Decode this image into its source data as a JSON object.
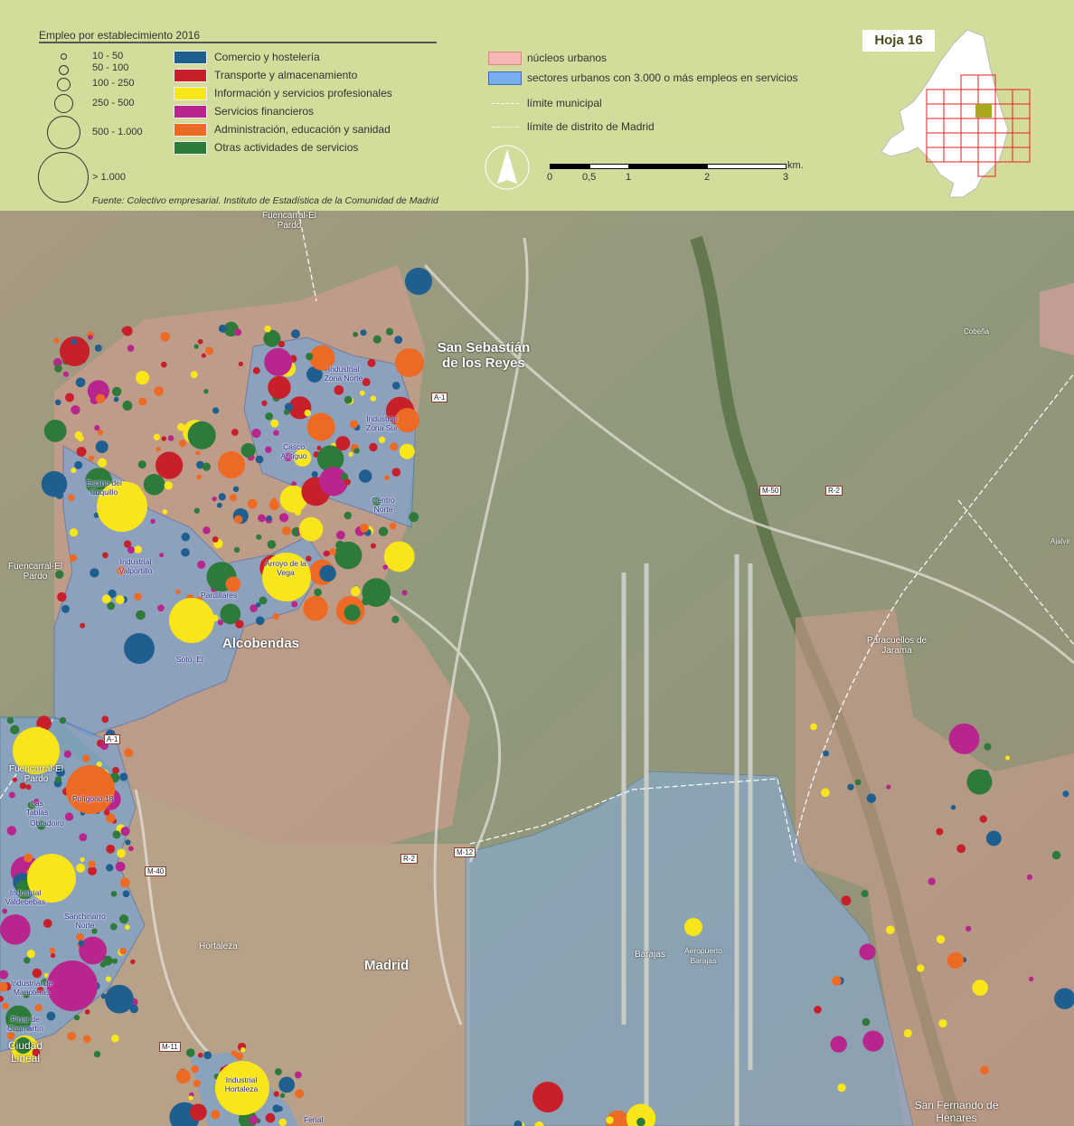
{
  "legend": {
    "size_title": "Empleo por establecimiento 2016",
    "sizes": [
      "10 - 50",
      "50 - 100",
      "100 - 250",
      "250 - 500",
      "500 - 1.000",
      "> 1.000"
    ],
    "categories": [
      {
        "label": "Comercio y hostelería",
        "color": "#1f5f8f"
      },
      {
        "label": "Transporte y almacenamiento",
        "color": "#c8202a"
      },
      {
        "label": "Información y servicios profesionales",
        "color": "#f8e51a"
      },
      {
        "label": "Servicios financieros",
        "color": "#b8258c"
      },
      {
        "label": "Administración, educación y sanidad",
        "color": "#ec6a24"
      },
      {
        "label": "Otras actividades de servicios",
        "color": "#2e7a3a"
      }
    ],
    "source": "Fuente: Colectivo empresarial. Instituto de Estadística de la Comunidad de Madrid",
    "areas": [
      {
        "label": "núcleos urbanos",
        "color": "#f6b6b6"
      },
      {
        "label": "sectores urbanos con 3.000 o más empleos en servicios",
        "color": "#78aef0"
      }
    ],
    "lines": [
      "límite municipal",
      "límite de distrito de Madrid"
    ],
    "scale": {
      "ticks": [
        "0",
        "0,5",
        "1",
        "2",
        "3"
      ],
      "unit": "km."
    },
    "north_icon": "north-arrow-icon",
    "sheet": "Hoja 16"
  },
  "map": {
    "places": {
      "san_sebastian": "San Sebastián de los Reyes",
      "alcobendas": "Alcobendas",
      "madrid": "Madrid",
      "hortaleza": "Hortaleza",
      "fuencarral_top": "Fuencarral-El Pardo",
      "fuencarral_left": "Fuencarral-El Pardo",
      "fuencarral_mid": "Fuencarral-El Pardo",
      "ciudad_lineal": "Ciudad Lineal",
      "barajas": "Barajas",
      "aeropuerto": "Aeropuerto Barajas",
      "paracuellos": "Paracuellos de Jarama",
      "san_fernando": "San Fernando de Henares",
      "cobena": "Cobeña",
      "ajalvir": "Ajalvir"
    },
    "sectors": {
      "ind_zona_norte": "Industrial Zona Norte",
      "ind_zona_sur": "Industrial Zona Sur",
      "casco": "Casco Antiguo",
      "centro_norte": "Centro Norte",
      "espino": "Espino del Cuquillo",
      "valportillo": "Industrial Valportillo",
      "arroyo": "Arroyo de la Vega",
      "pardillares": "Pardillares",
      "soto": "Soto, El",
      "poligono": "Polígono 18",
      "obradoiro": "Obradoiro",
      "las_tablas": "Las Tablas",
      "valdebebas": "Industrial Valdebebas",
      "sanchinarro": "Sanchinarro Norte",
      "manoteras": "Industrial de Manoteras",
      "pinar": "Pinar de Chamartín",
      "ind_hortaleza": "Industrial Hortaleza",
      "ferial": "Ferial"
    },
    "roads": {
      "a1a": "A-1",
      "a1b": "A-1",
      "m50": "M-50",
      "r2a": "R-2",
      "r2b": "R-2",
      "m12": "M-12",
      "m40": "M-40",
      "m11": "M-11"
    }
  }
}
